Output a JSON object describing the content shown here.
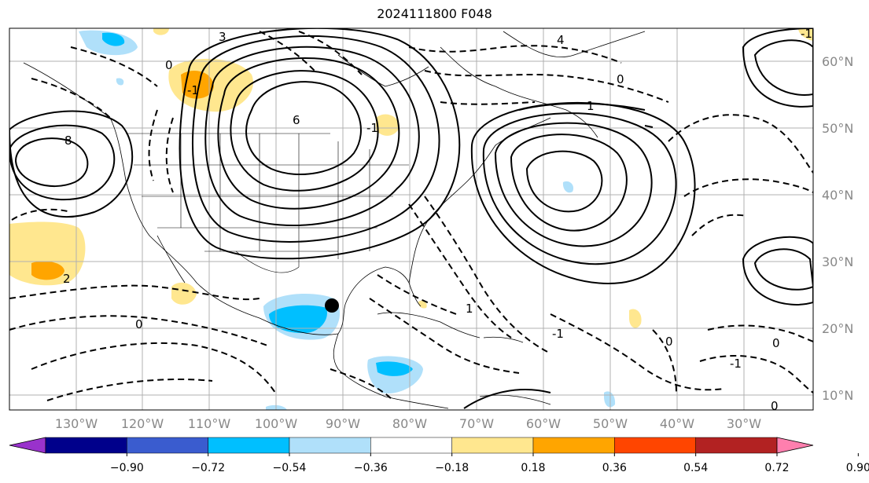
{
  "title": "2024111800 F048",
  "map": {
    "lon_labels": [
      "130°W",
      "120°W",
      "110°W",
      "100°W",
      "90°W",
      "80°W",
      "70°W",
      "60°W",
      "50°W",
      "40°W",
      "30°W"
    ],
    "lat_labels": [
      "60°N",
      "50°N",
      "40°N",
      "30°N",
      "20°N",
      "10°N"
    ],
    "contour_labels": [
      "0",
      "1",
      "-1",
      "2",
      "3",
      "4",
      "6",
      "8",
      "-1",
      "0",
      "0",
      "-1",
      "0",
      "0",
      "-1",
      "1",
      "-1",
      "0"
    ],
    "marker": "storm-center-dot"
  },
  "colorbar": {
    "ticks": [
      "−0.90",
      "−0.72",
      "−0.54",
      "−0.36",
      "−0.18",
      "0.18",
      "0.36",
      "0.54",
      "0.72",
      "0.90"
    ],
    "colors": [
      "#9932cc",
      "#00008b",
      "#3a5ccf",
      "#00bfff",
      "#b0e0fa",
      "#ffffff",
      "#ffe78f",
      "#ffa500",
      "#ff4500",
      "#b22222",
      "#ff7fae"
    ]
  }
}
